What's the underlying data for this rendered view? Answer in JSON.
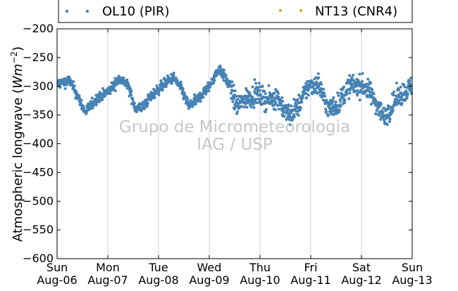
{
  "chart_data": {
    "type": "scatter",
    "ylabel_text": "Atmospheric longwave (",
    "ylabel_unit_base": "Wm",
    "ylabel_unit_exp": "−2",
    "ylabel_close": ")",
    "ylim": [
      -600,
      -200
    ],
    "y_ticks": [
      "−200",
      "−250",
      "−300",
      "−350",
      "−400",
      "−450",
      "−500",
      "−550",
      "−600"
    ],
    "x_range_days": [
      0,
      7
    ],
    "x_ticks": [
      {
        "day": "Sun",
        "date": "Aug-06"
      },
      {
        "day": "Mon",
        "date": "Aug-07"
      },
      {
        "day": "Tue",
        "date": "Aug-08"
      },
      {
        "day": "Wed",
        "date": "Aug-09"
      },
      {
        "day": "Thu",
        "date": "Aug-10"
      },
      {
        "day": "Fri",
        "date": "Aug-11"
      },
      {
        "day": "Sat",
        "date": "Aug-12"
      },
      {
        "day": "Sun",
        "date": "Aug-13"
      }
    ],
    "grid": "vertical",
    "legend_placement": "top",
    "series": [
      {
        "name": "OL10 (PIR)",
        "color": "#4682b4",
        "points": [
          [
            0.0,
            -296
          ],
          [
            0.25,
            -290
          ],
          [
            0.45,
            -325
          ],
          [
            0.55,
            -345
          ],
          [
            0.8,
            -320
          ],
          [
            1.0,
            -310
          ],
          [
            1.1,
            -300
          ],
          [
            1.25,
            -285
          ],
          [
            1.4,
            -300
          ],
          [
            1.55,
            -340
          ],
          [
            1.7,
            -335
          ],
          [
            1.85,
            -318
          ],
          [
            2.0,
            -305
          ],
          [
            2.15,
            -293
          ],
          [
            2.3,
            -285
          ],
          [
            2.45,
            -305
          ],
          [
            2.6,
            -335
          ],
          [
            2.8,
            -320
          ],
          [
            3.0,
            -300
          ],
          [
            3.2,
            -268
          ],
          [
            3.4,
            -300
          ],
          [
            3.55,
            -335
          ],
          [
            3.75,
            -320
          ],
          [
            3.95,
            -313
          ],
          [
            4.15,
            -325
          ],
          [
            4.35,
            -318
          ],
          [
            4.5,
            -345
          ],
          [
            4.6,
            -350
          ],
          [
            4.8,
            -328
          ],
          [
            4.95,
            -300
          ],
          [
            5.15,
            -295
          ],
          [
            5.35,
            -340
          ],
          [
            5.55,
            -330
          ],
          [
            5.75,
            -300
          ],
          [
            5.9,
            -298
          ],
          [
            6.05,
            -300
          ],
          [
            6.2,
            -315
          ],
          [
            6.45,
            -355
          ],
          [
            6.7,
            -320
          ],
          [
            7.0,
            -300
          ]
        ]
      },
      {
        "name": "NT13 (CNR4)",
        "color": "#daa520",
        "points": []
      }
    ]
  },
  "watermark": {
    "line1": "Grupo de Micrometeorologia",
    "line2": "IAG / USP"
  }
}
